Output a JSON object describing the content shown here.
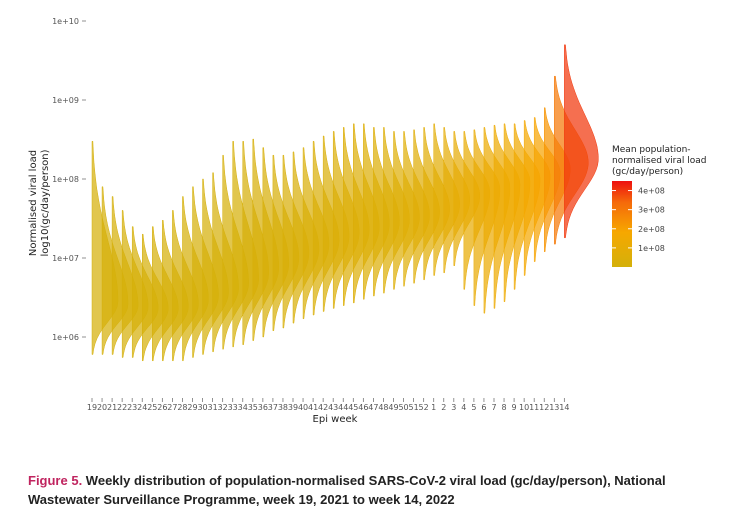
{
  "chart_data": {
    "type": "violin",
    "ylabel_line1": "Normalised viral load",
    "ylabel_line2": "log10(gc/day/person)",
    "xlabel": "Epi week",
    "y_scale": "log10",
    "ylim": [
      300000,
      10000000000
    ],
    "y_ticks": [
      {
        "value": 1000000,
        "label": "1e+06"
      },
      {
        "value": 10000000,
        "label": "1e+07"
      },
      {
        "value": 100000000,
        "label": "1e+08"
      },
      {
        "value": 1000000000,
        "label": "1e+09"
      },
      {
        "value": 10000000000,
        "label": "1e+10"
      }
    ],
    "categories": [
      "19",
      "20",
      "21",
      "22",
      "23",
      "24",
      "25",
      "26",
      "27",
      "28",
      "29",
      "30",
      "31",
      "32",
      "33",
      "34",
      "35",
      "36",
      "37",
      "38",
      "39",
      "40",
      "41",
      "42",
      "43",
      "44",
      "45",
      "46",
      "47",
      "48",
      "49",
      "50",
      "51",
      "52",
      "1",
      "2",
      "3",
      "4",
      "5",
      "6",
      "7",
      "8",
      "9",
      "10",
      "11",
      "12",
      "13",
      "14"
    ],
    "series": [
      {
        "week": "19",
        "median": 2800000,
        "min": 600000,
        "max": 300000000,
        "mean": 5000000
      },
      {
        "week": "20",
        "median": 2600000,
        "min": 600000,
        "max": 80000000,
        "mean": 4500000
      },
      {
        "week": "21",
        "median": 2500000,
        "min": 600000,
        "max": 60000000,
        "mean": 4200000
      },
      {
        "week": "22",
        "median": 2400000,
        "min": 550000,
        "max": 40000000,
        "mean": 4000000
      },
      {
        "week": "23",
        "median": 2300000,
        "min": 550000,
        "max": 25000000,
        "mean": 3800000
      },
      {
        "week": "24",
        "median": 2300000,
        "min": 500000,
        "max": 20000000,
        "mean": 3700000
      },
      {
        "week": "25",
        "median": 2300000,
        "min": 500000,
        "max": 25000000,
        "mean": 3800000
      },
      {
        "week": "26",
        "median": 2400000,
        "min": 500000,
        "max": 30000000,
        "mean": 4000000
      },
      {
        "week": "27",
        "median": 2600000,
        "min": 500000,
        "max": 40000000,
        "mean": 4500000
      },
      {
        "week": "28",
        "median": 3000000,
        "min": 500000,
        "max": 60000000,
        "mean": 5500000
      },
      {
        "week": "29",
        "median": 3300000,
        "min": 550000,
        "max": 80000000,
        "mean": 6000000
      },
      {
        "week": "30",
        "median": 3700000,
        "min": 600000,
        "max": 100000000,
        "mean": 6500000
      },
      {
        "week": "31",
        "median": 4200000,
        "min": 650000,
        "max": 120000000,
        "mean": 7500000
      },
      {
        "week": "32",
        "median": 4800000,
        "min": 700000,
        "max": 200000000,
        "mean": 8500000
      },
      {
        "week": "33",
        "median": 5500000,
        "min": 750000,
        "max": 300000000,
        "mean": 10000000
      },
      {
        "week": "34",
        "median": 6500000,
        "min": 800000,
        "max": 300000000,
        "mean": 12000000
      },
      {
        "week": "35",
        "median": 7500000,
        "min": 900000,
        "max": 320000000,
        "mean": 14000000
      },
      {
        "week": "36",
        "median": 8500000,
        "min": 1000000,
        "max": 250000000,
        "mean": 16000000
      },
      {
        "week": "37",
        "median": 10000000,
        "min": 1200000,
        "max": 200000000,
        "mean": 18000000
      },
      {
        "week": "38",
        "median": 11500000,
        "min": 1300000,
        "max": 200000000,
        "mean": 20000000
      },
      {
        "week": "39",
        "median": 13000000,
        "min": 1500000,
        "max": 220000000,
        "mean": 23000000
      },
      {
        "week": "40",
        "median": 15000000,
        "min": 1700000,
        "max": 250000000,
        "mean": 26000000
      },
      {
        "week": "41",
        "median": 17000000,
        "min": 1900000,
        "max": 300000000,
        "mean": 30000000
      },
      {
        "week": "42",
        "median": 19000000,
        "min": 2100000,
        "max": 350000000,
        "mean": 33000000
      },
      {
        "week": "43",
        "median": 21000000,
        "min": 2300000,
        "max": 400000000,
        "mean": 36000000
      },
      {
        "week": "44",
        "median": 23000000,
        "min": 2500000,
        "max": 450000000,
        "mean": 40000000
      },
      {
        "week": "45",
        "median": 25000000,
        "min": 2700000,
        "max": 500000000,
        "mean": 43000000
      },
      {
        "week": "46",
        "median": 27000000,
        "min": 3000000,
        "max": 500000000,
        "mean": 46000000
      },
      {
        "week": "47",
        "median": 29000000,
        "min": 3300000,
        "max": 450000000,
        "mean": 48000000
      },
      {
        "week": "48",
        "median": 31000000,
        "min": 3600000,
        "max": 450000000,
        "mean": 50000000
      },
      {
        "week": "49",
        "median": 33000000,
        "min": 4000000,
        "max": 400000000,
        "mean": 53000000
      },
      {
        "week": "50",
        "median": 35000000,
        "min": 4400000,
        "max": 400000000,
        "mean": 56000000
      },
      {
        "week": "51",
        "median": 38000000,
        "min": 4800000,
        "max": 420000000,
        "mean": 60000000
      },
      {
        "week": "52",
        "median": 42000000,
        "min": 5300000,
        "max": 450000000,
        "mean": 66000000
      },
      {
        "week": "1",
        "median": 48000000,
        "min": 6000000,
        "max": 500000000,
        "mean": 75000000
      },
      {
        "week": "2",
        "median": 55000000,
        "min": 6500000,
        "max": 450000000,
        "mean": 85000000
      },
      {
        "week": "3",
        "median": 62000000,
        "min": 8000000,
        "max": 400000000,
        "mean": 95000000
      },
      {
        "week": "4",
        "median": 68000000,
        "min": 4000000,
        "max": 400000000,
        "mean": 100000000
      },
      {
        "week": "5",
        "median": 74000000,
        "min": 2500000,
        "max": 420000000,
        "mean": 110000000
      },
      {
        "week": "6",
        "median": 80000000,
        "min": 2000000,
        "max": 450000000,
        "mean": 120000000
      },
      {
        "week": "7",
        "median": 86000000,
        "min": 2300000,
        "max": 480000000,
        "mean": 130000000
      },
      {
        "week": "8",
        "median": 92000000,
        "min": 2800000,
        "max": 500000000,
        "mean": 140000000
      },
      {
        "week": "9",
        "median": 100000000,
        "min": 4000000,
        "max": 500000000,
        "mean": 150000000
      },
      {
        "week": "10",
        "median": 110000000,
        "min": 6000000,
        "max": 550000000,
        "mean": 170000000
      },
      {
        "week": "11",
        "median": 120000000,
        "min": 9000000,
        "max": 600000000,
        "mean": 190000000
      },
      {
        "week": "12",
        "median": 135000000,
        "min": 12000000,
        "max": 800000000,
        "mean": 230000000
      },
      {
        "week": "13",
        "median": 160000000,
        "min": 15000000,
        "max": 2000000000,
        "mean": 300000000
      },
      {
        "week": "14",
        "median": 180000000,
        "min": 18000000,
        "max": 5000000000,
        "mean": 400000000
      }
    ],
    "legend": {
      "title_lines": [
        "Mean population-",
        "normalised viral load",
        "(gc/day/person)"
      ],
      "labels": [
        "4e+08",
        "3e+08",
        "2e+08",
        "1e+08"
      ],
      "values": [
        400000000,
        300000000,
        200000000,
        100000000
      ],
      "range": [
        0,
        450000000
      ],
      "color_low": "#d4b00a",
      "color_mid": "#f6a800",
      "color_high": "#ee1010",
      "placement": "right"
    }
  },
  "caption": {
    "label": "Figure 5.",
    "text": " Weekly distribution of population-normalised SARS-CoV-2 viral load (gc/day/person), National Wastewater Surveillance Programme, week 19, 2021 to week 14, 2022"
  }
}
